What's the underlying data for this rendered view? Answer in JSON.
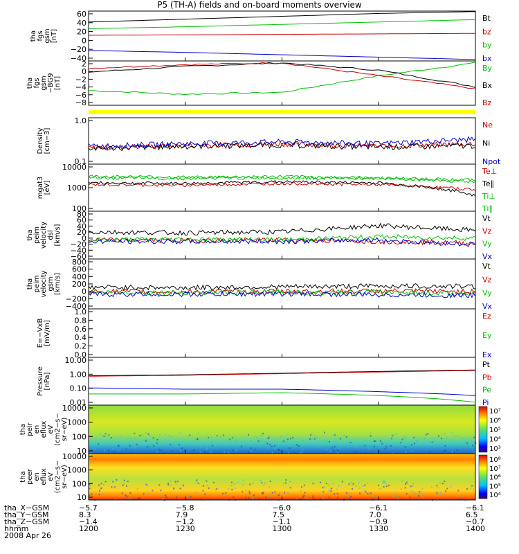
{
  "title": "P5 (TH-A) fields and on-board moments overview",
  "panels": [
    {
      "ylabel": [
        "tha",
        "fgs",
        "gsm",
        "[nT]"
      ],
      "yticks": [
        "60",
        "40",
        "20",
        "0",
        "−20",
        "−40"
      ],
      "legend": [
        {
          "t": "Bt",
          "c": "#000000"
        },
        {
          "t": "bz",
          "c": "#cc0000"
        },
        {
          "t": "by",
          "c": "#00c000"
        },
        {
          "t": "bx",
          "c": "#0000cc"
        }
      ]
    },
    {
      "ylabel": [
        "tha",
        "fgs",
        "gsm",
        "−BG9",
        "[nT]"
      ],
      "yticks": [
        "2",
        "0",
        "−2",
        "−4",
        "−6",
        "−8"
      ],
      "legend": [
        {
          "t": "By",
          "c": "#00c000"
        },
        {
          "t": "Bx",
          "c": "#000000"
        },
        {
          "t": "Bz",
          "c": "#cc0000"
        }
      ]
    },
    {
      "ylabel": [
        "Density",
        "[cm−3]"
      ],
      "yticks": [
        "1.0",
        "0.1"
      ],
      "legend": [
        {
          "t": "Ne",
          "c": "#cc0000"
        },
        {
          "t": "Ni",
          "c": "#000000"
        },
        {
          "t": "Npot",
          "c": "#0000cc"
        }
      ]
    },
    {
      "ylabel": [
        "mgat3",
        "[eV]"
      ],
      "yticks": [
        "10000",
        "1000",
        "100"
      ],
      "legend": [
        {
          "t": "Te⊥",
          "c": "#cc0000"
        },
        {
          "t": "Te∥",
          "c": "#000000"
        },
        {
          "t": "Ti⊥",
          "c": "#00c000"
        },
        {
          "t": "Ti∥",
          "c": "#00c000"
        }
      ]
    },
    {
      "ylabel": [
        "tha",
        "peim",
        "velocity",
        "dsl",
        "[km/s]"
      ],
      "yticks": [
        "80",
        "60",
        "40",
        "20",
        "0",
        "−20",
        "−40",
        "−60"
      ],
      "legend": [
        {
          "t": "Vt",
          "c": "#000000"
        },
        {
          "t": "Vz",
          "c": "#cc0000"
        },
        {
          "t": "Vy",
          "c": "#00c000"
        },
        {
          "t": "Vx",
          "c": "#0000cc"
        }
      ]
    },
    {
      "ylabel": [
        "tha",
        "peim",
        "velocity",
        "gsm",
        "[km/s]"
      ],
      "yticks": [
        "800",
        "600",
        "400",
        "200",
        "0",
        "−200",
        "−400"
      ],
      "legend": [
        {
          "t": "Vt",
          "c": "#000000"
        },
        {
          "t": "Vz",
          "c": "#cc0000"
        },
        {
          "t": "Vy",
          "c": "#00c000"
        },
        {
          "t": "Vx",
          "c": "#0000cc"
        }
      ]
    },
    {
      "ylabel": [
        "E=−VxB",
        "[mV/m]"
      ],
      "yticks": [
        "1.0",
        "0.8",
        "0.6",
        "0.4",
        "0.2",
        "0.0"
      ],
      "legend": [
        {
          "t": "Ez",
          "c": "#cc0000"
        },
        {
          "t": "Ey",
          "c": "#00c000"
        },
        {
          "t": "Ex",
          "c": "#0000cc"
        }
      ]
    },
    {
      "ylabel": [
        "Pressure",
        "[nPa]"
      ],
      "yticks": [
        "10.00",
        "1.00",
        "0.10",
        "0.01"
      ],
      "legend": [
        {
          "t": "Pt",
          "c": "#000000"
        },
        {
          "t": "Pb",
          "c": "#cc0000"
        },
        {
          "t": "Pe",
          "c": "#00c000"
        },
        {
          "t": "Pi",
          "c": "#0000cc"
        }
      ]
    },
    {
      "ylabel": [
        "tha",
        "peir",
        "en",
        "eflux",
        "eV",
        "(cm2−s−",
        "sr−eV)"
      ],
      "yticks": [
        "10000",
        "1000",
        "100",
        "10"
      ],
      "cbar": [
        "10⁷",
        "10⁶",
        "10⁵",
        "10⁴",
        "10³"
      ]
    },
    {
      "ylabel": [
        "tha",
        "peer",
        "en",
        "eflux",
        "eV",
        "(cm2−s−",
        "sr−eV)"
      ],
      "yticks": [
        "10000",
        "1000",
        "100",
        "10"
      ],
      "cbar": [
        "10⁸",
        "10⁷",
        "10⁶",
        "10⁵",
        "10⁴"
      ]
    }
  ],
  "orbit": {
    "labels": [
      "tha_X−GSM",
      "tha_Y−GSM",
      "tha_Z−GSM",
      "hhmm",
      "2008 Apr 26"
    ],
    "cols": [
      [
        "−5.7",
        "8.3",
        "−1.4",
        "1200"
      ],
      [
        "−5.8",
        "7.9",
        "−1.2",
        "1230"
      ],
      [
        "−6.0",
        "7.5",
        "−1.1",
        "1300"
      ],
      [
        "−6.1",
        "7.0",
        "−0.9",
        "1330"
      ],
      [
        "−6.1",
        "6.5",
        "−0.7",
        "1400"
      ]
    ]
  },
  "chart_data": [
    {
      "type": "line",
      "ylabel": "tha fgs gsm [nT]",
      "ylim": [
        -40,
        65
      ],
      "series": [
        {
          "name": "Bt",
          "values": [
            42,
            48,
            54,
            60,
            64
          ]
        },
        {
          "name": "bz",
          "values": [
            14,
            15,
            16,
            17,
            18
          ]
        },
        {
          "name": "by",
          "values": [
            28,
            32,
            37,
            42,
            47
          ]
        },
        {
          "name": "bx",
          "values": [
            -18,
            -22,
            -27,
            -32,
            -37
          ]
        }
      ]
    },
    {
      "type": "line",
      "ylabel": "tha fgs gsm −BG9 [nT]",
      "ylim": [
        -9,
        3
      ],
      "series": [
        {
          "name": "By",
          "values": [
            -5,
            -6,
            -5.5,
            -1,
            2.5
          ]
        },
        {
          "name": "Bx",
          "values": [
            0,
            1.5,
            2.5,
            0.5,
            -4
          ]
        },
        {
          "name": "Bz",
          "values": [
            1,
            2,
            2.5,
            -1,
            -4.5
          ]
        }
      ]
    },
    {
      "type": "line",
      "ylabel": "Density [cm−3]",
      "yscale": "log",
      "ylim": [
        0.1,
        1.2
      ],
      "series": [
        {
          "name": "Ne",
          "values": [
            0.24,
            0.27,
            0.3,
            0.26,
            0.3
          ]
        },
        {
          "name": "Ni",
          "values": [
            0.23,
            0.26,
            0.28,
            0.25,
            0.27
          ]
        },
        {
          "name": "Npot",
          "values": [
            0.26,
            0.3,
            0.33,
            0.3,
            0.38
          ]
        }
      ]
    },
    {
      "type": "line",
      "ylabel": "mgat3 [eV]",
      "yscale": "log",
      "ylim": [
        100,
        12000
      ],
      "series": [
        {
          "name": "Te⊥",
          "values": [
            1500,
            1400,
            1700,
            1500,
            900
          ]
        },
        {
          "name": "Te∥",
          "values": [
            1800,
            1700,
            2000,
            1800,
            500
          ]
        },
        {
          "name": "Ti⊥",
          "values": [
            3500,
            3200,
            3400,
            3000,
            2400
          ]
        },
        {
          "name": "Ti∥",
          "values": [
            3000,
            2800,
            3000,
            2800,
            2000
          ]
        }
      ]
    },
    {
      "type": "line",
      "ylabel": "tha peim velocity dsl [km/s]",
      "ylim": [
        -60,
        90
      ],
      "series": [
        {
          "name": "Vt",
          "values": [
            25,
            22,
            25,
            45,
            30
          ]
        },
        {
          "name": "Vz",
          "values": [
            0,
            -2,
            0,
            -5,
            -10
          ]
        },
        {
          "name": "Vy",
          "values": [
            0,
            2,
            0,
            10,
            5
          ]
        },
        {
          "name": "Vx",
          "values": [
            -5,
            -5,
            -5,
            0,
            -15
          ]
        }
      ]
    },
    {
      "type": "line",
      "ylabel": "tha peim velocity gsm [km/s]",
      "ylim": [
        -400,
        800
      ],
      "series": [
        {
          "name": "Vt",
          "values": [
            120,
            110,
            130,
            150,
            140
          ]
        },
        {
          "name": "Vz",
          "values": [
            20,
            10,
            20,
            30,
            20
          ]
        },
        {
          "name": "Vy",
          "values": [
            0,
            -10,
            0,
            0,
            -30
          ]
        },
        {
          "name": "Vx",
          "values": [
            -50,
            -50,
            -40,
            -60,
            -80
          ]
        }
      ]
    },
    {
      "type": "line",
      "ylabel": "E=−VxB [mV/m]",
      "ylim": [
        0,
        1
      ],
      "series": [
        {
          "name": "Ez",
          "values": []
        },
        {
          "name": "Ey",
          "values": []
        },
        {
          "name": "Ex",
          "values": []
        }
      ]
    },
    {
      "type": "line",
      "ylabel": "Pressure [nPa]",
      "yscale": "log",
      "ylim": [
        0.01,
        10
      ],
      "series": [
        {
          "name": "Pt",
          "values": [
            0.7,
            0.8,
            1.0,
            1.3,
            1.6
          ]
        },
        {
          "name": "Pb",
          "values": [
            0.65,
            0.75,
            0.95,
            1.2,
            1.5
          ]
        },
        {
          "name": "Pe",
          "values": [
            0.05,
            0.05,
            0.06,
            0.04,
            0.015
          ]
        },
        {
          "name": "Pi",
          "values": [
            0.12,
            0.1,
            0.1,
            0.07,
            0.04
          ]
        }
      ]
    },
    {
      "type": "heatmap",
      "ylabel": "tha peir en eflux eV (cm2−s−sr−eV)",
      "yscale": "log",
      "ylim": [
        10,
        20000
      ]
    },
    {
      "type": "heatmap",
      "ylabel": "tha peer en eflux eV (cm2−s−sr−eV)",
      "yscale": "log",
      "ylim": [
        10,
        20000
      ]
    }
  ]
}
